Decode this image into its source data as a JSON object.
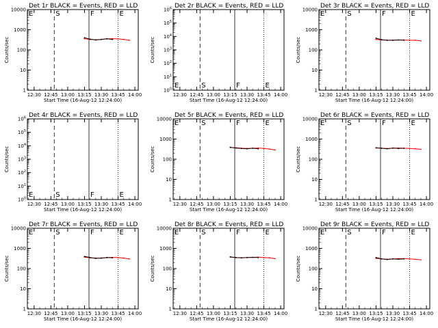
{
  "window": {
    "width_label": "640x480"
  },
  "chart_data": [
    {
      "type": "line",
      "title": "Det 1r BLACK = Events, RED = LLD",
      "xlabel": "Start Time (16-Aug-12 12:24:00)",
      "ylabel": "Counts/sec",
      "yscale": "log",
      "xlim": [
        "12:24",
        "14:03"
      ],
      "ylim": [
        1,
        10000
      ],
      "xticks": [
        "12:30",
        "12:45",
        "13:00",
        "13:15",
        "13:30",
        "13:45",
        "14:00"
      ],
      "yticks": [
        "1",
        "10",
        "100",
        "1000",
        "10000"
      ],
      "markers": [
        {
          "label": "E",
          "time": "12:24",
          "style": "dotted"
        },
        {
          "label": "S",
          "time": "12:48",
          "style": "dashed"
        },
        {
          "label": "F",
          "time": "13:19",
          "style": "solid"
        },
        {
          "label": "E",
          "time": "13:45",
          "style": "dotted"
        }
      ],
      "series": [
        {
          "name": "Events",
          "color": "#000000",
          "x": [
            "13:15",
            "13:20",
            "13:25",
            "13:30",
            "13:35",
            "13:40"
          ],
          "y": [
            400,
            340,
            310,
            330,
            360,
            330
          ]
        },
        {
          "name": "LLD",
          "color": "#ff0000",
          "x": [
            "13:15",
            "13:20",
            "13:25",
            "13:30",
            "13:35",
            "13:40",
            "13:45",
            "13:50",
            "13:55"
          ],
          "y": [
            360,
            330,
            320,
            330,
            350,
            360,
            350,
            330,
            300
          ]
        }
      ]
    },
    {
      "type": "line",
      "title": "Det 2r BLACK = Events, RED = LLD",
      "xlabel": "Start Time (16-Aug-12 12:24:00)",
      "ylabel": "Counts/sec",
      "yscale": "log",
      "xlim": [
        "12:24",
        "14:03"
      ],
      "ylim": [
        1,
        1000000
      ],
      "xticks": [
        "12:30",
        "12:45",
        "13:00",
        "13:15",
        "13:30",
        "13:45",
        "14:00"
      ],
      "yticks": [
        "10^0",
        "10^1",
        "10^2",
        "10^3",
        "10^4",
        "10^5",
        "10^6"
      ],
      "markers": [
        {
          "label": "E",
          "time": "12:24",
          "style": "dotted"
        },
        {
          "label": "S",
          "time": "12:48",
          "style": "dashed"
        },
        {
          "label": "F",
          "time": "13:19",
          "style": "solid"
        },
        {
          "label": "E",
          "time": "13:45",
          "style": "dotted"
        }
      ],
      "series": []
    },
    {
      "type": "line",
      "title": "Det 3r BLACK = Events, RED = LLD",
      "xlabel": "Start Time (16-Aug-12 12:24:00)",
      "ylabel": "Counts/sec",
      "yscale": "log",
      "xlim": [
        "12:24",
        "14:03"
      ],
      "ylim": [
        1,
        10000
      ],
      "xticks": [
        "12:30",
        "12:45",
        "13:00",
        "13:15",
        "13:30",
        "13:45",
        "14:00"
      ],
      "yticks": [
        "1",
        "10",
        "100",
        "1000",
        "10000"
      ],
      "markers": [
        {
          "label": "E",
          "time": "12:24",
          "style": "dotted"
        },
        {
          "label": "S",
          "time": "12:48",
          "style": "dashed"
        },
        {
          "label": "F",
          "time": "13:19",
          "style": "solid"
        },
        {
          "label": "E",
          "time": "13:45",
          "style": "dotted"
        }
      ],
      "series": [
        {
          "name": "Events",
          "color": "#000000",
          "x": [
            "13:15",
            "13:20",
            "13:25",
            "13:30",
            "13:35",
            "13:40"
          ],
          "y": [
            380,
            320,
            300,
            300,
            310,
            300
          ]
        },
        {
          "name": "LLD",
          "color": "#ff0000",
          "x": [
            "13:15",
            "13:20",
            "13:25",
            "13:30",
            "13:35",
            "13:40",
            "13:45",
            "13:50",
            "13:55"
          ],
          "y": [
            330,
            310,
            300,
            300,
            310,
            310,
            300,
            300,
            280
          ]
        }
      ]
    },
    {
      "type": "line",
      "title": "Det 4r BLACK = Events, RED = LLD",
      "xlabel": "Start Time (16-Aug-12 12:24:00)",
      "ylabel": "Counts/sec",
      "yscale": "log",
      "xlim": [
        "12:24",
        "14:03"
      ],
      "ylim": [
        1,
        1000000
      ],
      "xticks": [
        "12:30",
        "12:45",
        "13:00",
        "13:15",
        "13:30",
        "13:45",
        "14:00"
      ],
      "yticks": [
        "10^0",
        "10^1",
        "10^2",
        "10^3",
        "10^4",
        "10^5",
        "10^6"
      ],
      "markers": [
        {
          "label": "E",
          "time": "12:24",
          "style": "dotted"
        },
        {
          "label": "S",
          "time": "12:48",
          "style": "dashed"
        },
        {
          "label": "F",
          "time": "13:19",
          "style": "solid"
        },
        {
          "label": "E",
          "time": "13:45",
          "style": "dotted"
        }
      ],
      "series": []
    },
    {
      "type": "line",
      "title": "Det 5r BLACK = Events, RED = LLD",
      "xlabel": "Start Time (16-Aug-12 12:24:00)",
      "ylabel": "Counts/sec",
      "yscale": "log",
      "xlim": [
        "12:24",
        "14:03"
      ],
      "ylim": [
        1,
        10000
      ],
      "xticks": [
        "12:30",
        "12:45",
        "13:00",
        "13:15",
        "13:30",
        "13:45",
        "14:00"
      ],
      "yticks": [
        "1",
        "10",
        "100",
        "1000",
        "10000"
      ],
      "markers": [
        {
          "label": "E",
          "time": "12:24",
          "style": "dotted"
        },
        {
          "label": "S",
          "time": "12:48",
          "style": "dashed"
        },
        {
          "label": "F",
          "time": "13:19",
          "style": "solid"
        },
        {
          "label": "E",
          "time": "13:45",
          "style": "dotted"
        }
      ],
      "series": [
        {
          "name": "Events",
          "color": "#000000",
          "x": [
            "13:15",
            "13:20",
            "13:25",
            "13:30",
            "13:35",
            "13:40"
          ],
          "y": [
            390,
            360,
            340,
            330,
            350,
            330
          ]
        },
        {
          "name": "LLD",
          "color": "#ff0000",
          "x": [
            "13:15",
            "13:20",
            "13:25",
            "13:30",
            "13:35",
            "13:40",
            "13:45",
            "13:50",
            "13:55"
          ],
          "y": [
            380,
            370,
            350,
            340,
            350,
            360,
            340,
            320,
            290
          ]
        }
      ]
    },
    {
      "type": "line",
      "title": "Det 6r BLACK = Events, RED = LLD",
      "xlabel": "Start Time (16-Aug-12 12:24:00)",
      "ylabel": "Counts/sec",
      "yscale": "log",
      "xlim": [
        "12:24",
        "14:03"
      ],
      "ylim": [
        1,
        10000
      ],
      "xticks": [
        "12:30",
        "12:45",
        "13:00",
        "13:15",
        "13:30",
        "13:45",
        "14:00"
      ],
      "yticks": [
        "1",
        "10",
        "100",
        "1000",
        "10000"
      ],
      "markers": [
        {
          "label": "E",
          "time": "12:24",
          "style": "dotted"
        },
        {
          "label": "S",
          "time": "12:48",
          "style": "dashed"
        },
        {
          "label": "F",
          "time": "13:19",
          "style": "solid"
        },
        {
          "label": "E",
          "time": "13:45",
          "style": "dotted"
        }
      ],
      "series": [
        {
          "name": "Events",
          "color": "#000000",
          "x": [
            "13:15",
            "13:20",
            "13:25",
            "13:30",
            "13:35",
            "13:40"
          ],
          "y": [
            370,
            350,
            330,
            360,
            340,
            350
          ]
        },
        {
          "name": "LLD",
          "color": "#ff0000",
          "x": [
            "13:15",
            "13:20",
            "13:25",
            "13:30",
            "13:35",
            "13:40",
            "13:45",
            "13:50",
            "13:55"
          ],
          "y": [
            360,
            350,
            340,
            350,
            360,
            350,
            340,
            330,
            310
          ]
        }
      ]
    },
    {
      "type": "line",
      "title": "Det 7r BLACK = Events, RED = LLD",
      "xlabel": "Start Time (16-Aug-12 12:24:00)",
      "ylabel": "Counts/sec",
      "yscale": "log",
      "xlim": [
        "12:24",
        "14:03"
      ],
      "ylim": [
        1,
        10000
      ],
      "xticks": [
        "12:30",
        "12:45",
        "13:00",
        "13:15",
        "13:30",
        "13:45",
        "14:00"
      ],
      "yticks": [
        "1",
        "10",
        "100",
        "1000",
        "10000"
      ],
      "markers": [
        {
          "label": "E",
          "time": "12:24",
          "style": "dotted"
        },
        {
          "label": "S",
          "time": "12:48",
          "style": "dashed"
        },
        {
          "label": "F",
          "time": "13:19",
          "style": "solid"
        },
        {
          "label": "E",
          "time": "13:45",
          "style": "dotted"
        }
      ],
      "series": [
        {
          "name": "Events",
          "color": "#000000",
          "x": [
            "13:15",
            "13:20",
            "13:25",
            "13:30",
            "13:35",
            "13:40"
          ],
          "y": [
            400,
            350,
            320,
            330,
            350,
            340
          ]
        },
        {
          "name": "LLD",
          "color": "#ff0000",
          "x": [
            "13:15",
            "13:20",
            "13:25",
            "13:30",
            "13:35",
            "13:40",
            "13:45",
            "13:50",
            "13:55"
          ],
          "y": [
            370,
            340,
            330,
            330,
            350,
            360,
            350,
            330,
            300
          ]
        }
      ]
    },
    {
      "type": "line",
      "title": "Det 8r BLACK = Events, RED = LLD",
      "xlabel": "Start Time (16-Aug-12 12:24:00)",
      "ylabel": "Counts/sec",
      "yscale": "log",
      "xlim": [
        "12:24",
        "14:03"
      ],
      "ylim": [
        1,
        10000
      ],
      "xticks": [
        "12:30",
        "12:45",
        "13:00",
        "13:15",
        "13:30",
        "13:45",
        "14:00"
      ],
      "yticks": [
        "1",
        "10",
        "100",
        "1000",
        "10000"
      ],
      "markers": [
        {
          "label": "E",
          "time": "12:24",
          "style": "dotted"
        },
        {
          "label": "S",
          "time": "12:48",
          "style": "dashed"
        },
        {
          "label": "F",
          "time": "13:19",
          "style": "solid"
        },
        {
          "label": "E",
          "time": "13:45",
          "style": "dotted"
        }
      ],
      "series": [
        {
          "name": "Events",
          "color": "#000000",
          "x": [
            "13:15",
            "13:20",
            "13:25",
            "13:30",
            "13:35",
            "13:40"
          ],
          "y": [
            380,
            350,
            340,
            350,
            360,
            350
          ]
        },
        {
          "name": "LLD",
          "color": "#ff0000",
          "x": [
            "13:15",
            "13:20",
            "13:25",
            "13:30",
            "13:35",
            "13:40",
            "13:45",
            "13:50",
            "13:55"
          ],
          "y": [
            370,
            350,
            340,
            350,
            360,
            370,
            350,
            340,
            310
          ]
        }
      ]
    },
    {
      "type": "line",
      "title": "Det 9r BLACK = Events, RED = LLD",
      "xlabel": "Start Time (16-Aug-12 12:24:00)",
      "ylabel": "Counts/sec",
      "yscale": "log",
      "xlim": [
        "12:24",
        "14:03"
      ],
      "ylim": [
        1,
        10000
      ],
      "xticks": [
        "12:30",
        "12:45",
        "13:00",
        "13:15",
        "13:30",
        "13:45",
        "14:00"
      ],
      "yticks": [
        "1",
        "10",
        "100",
        "1000",
        "10000"
      ],
      "markers": [
        {
          "label": "E",
          "time": "12:24",
          "style": "dotted"
        },
        {
          "label": "S",
          "time": "12:48",
          "style": "dashed"
        },
        {
          "label": "F",
          "time": "13:19",
          "style": "solid"
        },
        {
          "label": "E",
          "time": "13:45",
          "style": "dotted"
        }
      ],
      "series": [
        {
          "name": "Events",
          "color": "#000000",
          "x": [
            "13:15",
            "13:20",
            "13:25",
            "13:30",
            "13:35",
            "13:40"
          ],
          "y": [
            350,
            300,
            280,
            300,
            290,
            300
          ]
        },
        {
          "name": "LLD",
          "color": "#ff0000",
          "x": [
            "13:15",
            "13:20",
            "13:25",
            "13:30",
            "13:35",
            "13:40",
            "13:45",
            "13:50",
            "13:55"
          ],
          "y": [
            320,
            300,
            290,
            300,
            310,
            310,
            300,
            290,
            270
          ]
        }
      ]
    }
  ]
}
